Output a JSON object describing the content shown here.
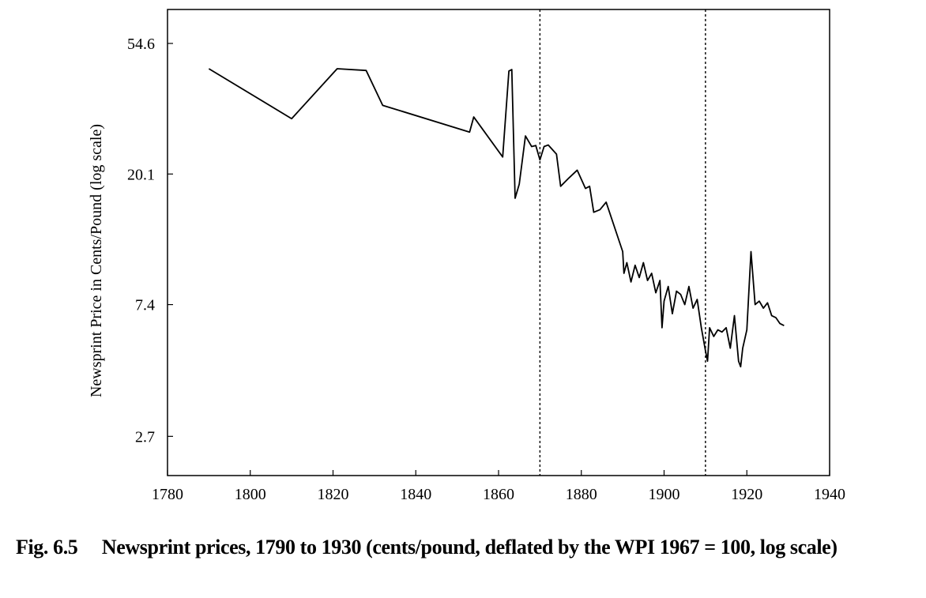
{
  "chart_data": {
    "type": "line",
    "caption": "Fig. 6.5     Newsprint prices, 1790 to 1930 (cents/pound, deflated by the WPI 1967 = 100, log scale)",
    "ylabel": "Newsprint Price in Cents/Pound (log scale)",
    "log_scale_y": true,
    "xlim": [
      1780,
      1940
    ],
    "xticks": [
      1780,
      1800,
      1820,
      1840,
      1860,
      1880,
      1900,
      1920,
      1940
    ],
    "ylim": [
      2.0,
      70.8
    ],
    "yticks": [
      2.7,
      7.4,
      20.1,
      54.6
    ],
    "vlines": [
      1870,
      1910
    ],
    "color": "#000000",
    "x": [
      1790,
      1810,
      1821,
      1828,
      1832,
      1853,
      1854,
      1861,
      1862.5,
      1863.2,
      1864,
      1865,
      1866.5,
      1868,
      1869,
      1870,
      1871,
      1872,
      1874,
      1875,
      1877,
      1879,
      1881,
      1882,
      1883,
      1884.5,
      1886,
      1890,
      1890.3,
      1891,
      1892,
      1893,
      1894,
      1895,
      1896,
      1897,
      1898,
      1899,
      1899.5,
      1900,
      1901,
      1902,
      1903,
      1904,
      1905,
      1906,
      1907,
      1908,
      1909,
      1910,
      1910.5,
      1911,
      1912,
      1913,
      1914,
      1915,
      1916,
      1917,
      1918,
      1918.5,
      1919,
      1920,
      1921,
      1922,
      1923,
      1924,
      1925,
      1926,
      1927,
      1928,
      1929
    ],
    "series": [
      {
        "name": "Newsprint price",
        "values": [
          45.0,
          30.7,
          45.0,
          44.4,
          34.0,
          27.7,
          31.1,
          22.9,
          44.2,
          44.7,
          16.7,
          18.6,
          26.9,
          24.8,
          25.0,
          22.4,
          24.8,
          25.1,
          23.4,
          18.3,
          19.5,
          20.7,
          18.0,
          18.3,
          15.0,
          15.3,
          16.2,
          11.1,
          9.4,
          10.2,
          8.8,
          10.0,
          9.1,
          10.2,
          8.9,
          9.4,
          8.1,
          8.9,
          6.2,
          7.6,
          8.5,
          6.9,
          8.2,
          8.0,
          7.4,
          8.5,
          7.2,
          7.7,
          6.2,
          5.2,
          4.8,
          6.2,
          5.8,
          6.1,
          6.0,
          6.2,
          5.3,
          6.8,
          4.8,
          4.6,
          5.3,
          6.1,
          11.1,
          7.4,
          7.6,
          7.2,
          7.5,
          6.8,
          6.7,
          6.4,
          6.3
        ]
      }
    ]
  }
}
